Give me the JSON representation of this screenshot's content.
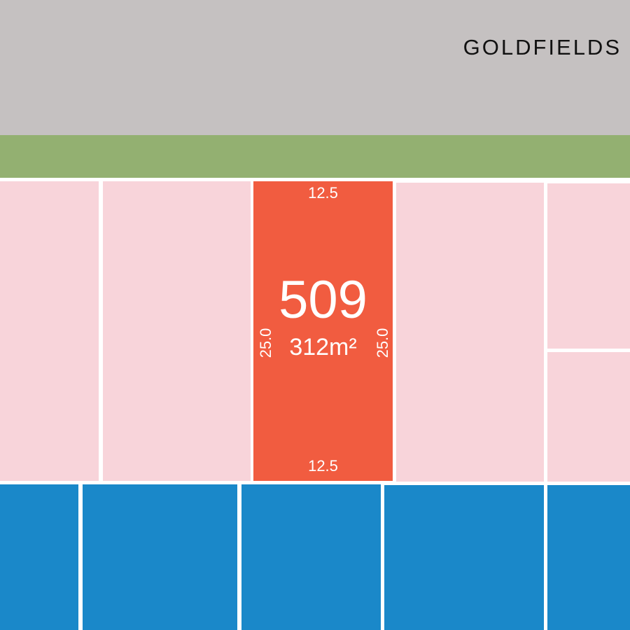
{
  "street": {
    "name": "GOLDFIELDS"
  },
  "featured_lot": {
    "number": "509",
    "area": "312m²",
    "frontage_top": "12.5",
    "frontage_bottom": "12.5",
    "depth_left": "25.0",
    "depth_right": "25.0"
  },
  "colors": {
    "road": "#c5c1c1",
    "verge": "#93b071",
    "neighbouring_lot": "#f8d4da",
    "featured_lot": "#f15c40",
    "other_stage_lot": "#1a88c9",
    "boundary": "#ffffff",
    "label_text": "#ffffff",
    "street_text": "#111111"
  }
}
